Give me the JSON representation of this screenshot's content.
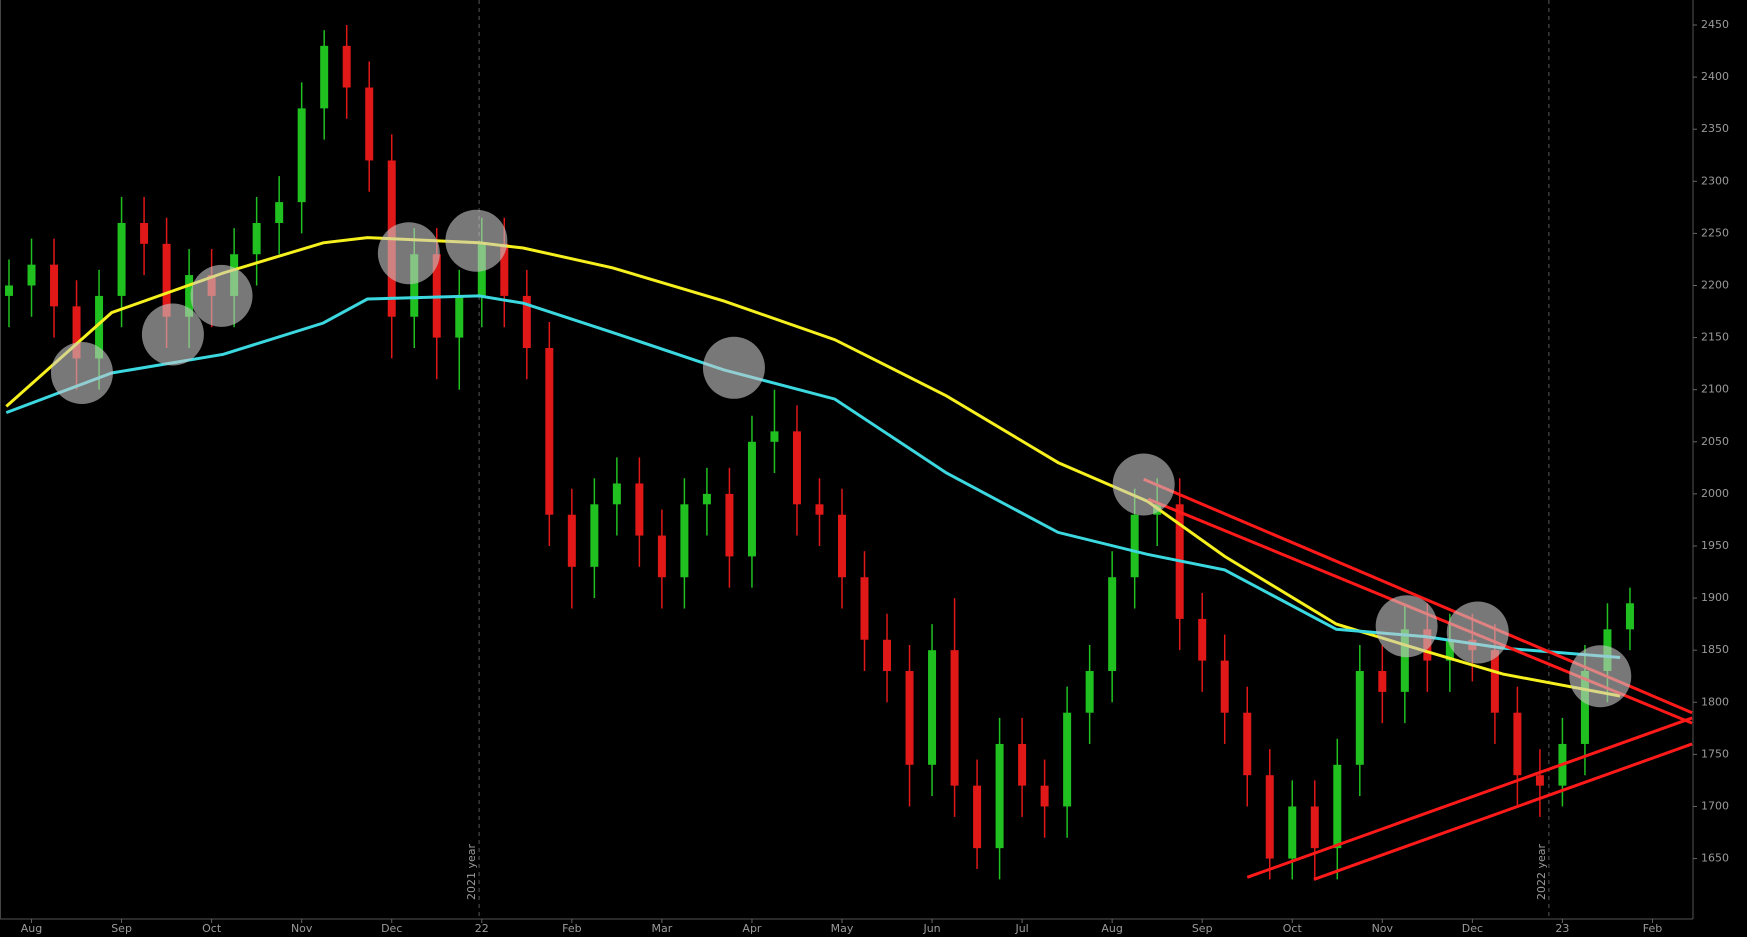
{
  "chart_data": {
    "type": "candlestick",
    "xlim": [
      -0.35,
      18.45
    ],
    "ylim": [
      1592,
      2474
    ],
    "xticks": [
      {
        "value": 0,
        "label": "Aug"
      },
      {
        "value": 1,
        "label": "Sep"
      },
      {
        "value": 2,
        "label": "Oct"
      },
      {
        "value": 3,
        "label": "Nov"
      },
      {
        "value": 4,
        "label": "Dec"
      },
      {
        "value": 5,
        "label": "22"
      },
      {
        "value": 6,
        "label": "Feb"
      },
      {
        "value": 7,
        "label": "Mar"
      },
      {
        "value": 8,
        "label": "Apr"
      },
      {
        "value": 9,
        "label": "May"
      },
      {
        "value": 10,
        "label": "Jun"
      },
      {
        "value": 11,
        "label": "Jul"
      },
      {
        "value": 12,
        "label": "Aug"
      },
      {
        "value": 13,
        "label": "Sep"
      },
      {
        "value": 14,
        "label": "Oct"
      },
      {
        "value": 15,
        "label": "Nov"
      },
      {
        "value": 16,
        "label": "Dec"
      },
      {
        "value": 17,
        "label": "23"
      },
      {
        "value": 18,
        "label": "Feb"
      }
    ],
    "yticks": [
      1650,
      1700,
      1750,
      1800,
      1850,
      1900,
      1950,
      2000,
      2050,
      2100,
      2150,
      2200,
      2250,
      2300,
      2350,
      2400,
      2450
    ],
    "up_color": "#20c020",
    "down_color": "#e01818",
    "candles": {
      "x": [
        -0.25,
        0,
        0.25,
        0.5,
        0.75,
        1,
        1.25,
        1.5,
        1.75,
        2,
        2.25,
        2.5,
        2.75,
        3,
        3.25,
        3.5,
        3.75,
        4,
        4.25,
        4.5,
        4.75,
        5,
        5.25,
        5.5,
        5.75,
        6,
        6.25,
        6.5,
        6.75,
        7,
        7.25,
        7.5,
        7.75,
        8,
        8.25,
        8.5,
        8.75,
        9,
        9.25,
        9.5,
        9.75,
        10,
        10.25,
        10.5,
        10.75,
        11,
        11.25,
        11.5,
        11.75,
        12,
        12.25,
        12.5,
        12.75,
        13,
        13.25,
        13.5,
        13.75,
        14,
        14.25,
        14.5,
        14.75,
        15,
        15.25,
        15.5,
        15.75,
        16,
        16.25,
        16.5,
        16.75,
        17,
        17.25,
        17.5,
        17.75
      ],
      "open": [
        2190,
        2200,
        2220,
        2180,
        2130,
        2190,
        2260,
        2240,
        2170,
        2210,
        2190,
        2230,
        2260,
        2280,
        2370,
        2430,
        2390,
        2320,
        2170,
        2230,
        2150,
        2190,
        2240,
        2190,
        2140,
        1980,
        1930,
        1990,
        2010,
        1960,
        1920,
        1990,
        2000,
        1940,
        2050,
        2060,
        1990,
        1980,
        1920,
        1860,
        1830,
        1740,
        1850,
        1720,
        1660,
        1760,
        1720,
        1700,
        1790,
        1830,
        1920,
        1980,
        1990,
        1880,
        1840,
        1790,
        1730,
        1650,
        1700,
        1660,
        1740,
        1830,
        1810,
        1870,
        1840,
        1860,
        1850,
        1790,
        1730,
        1720,
        1760,
        1830,
        1870
      ],
      "high": [
        2225,
        2245,
        2245,
        2205,
        2215,
        2285,
        2285,
        2265,
        2235,
        2235,
        2255,
        2285,
        2305,
        2395,
        2445,
        2450,
        2415,
        2345,
        2255,
        2255,
        2215,
        2265,
        2265,
        2215,
        2165,
        2005,
        2015,
        2035,
        2035,
        1985,
        2015,
        2025,
        2025,
        2075,
        2100,
        2085,
        2015,
        2005,
        1945,
        1885,
        1855,
        1875,
        1900,
        1745,
        1785,
        1785,
        1745,
        1815,
        1855,
        1945,
        2005,
        2015,
        2015,
        1905,
        1865,
        1815,
        1755,
        1725,
        1725,
        1765,
        1855,
        1855,
        1895,
        1895,
        1885,
        1885,
        1875,
        1815,
        1755,
        1785,
        1855,
        1895,
        1910
      ],
      "low": [
        2160,
        2170,
        2150,
        2100,
        2100,
        2160,
        2210,
        2140,
        2140,
        2160,
        2160,
        2200,
        2230,
        2250,
        2340,
        2360,
        2290,
        2130,
        2140,
        2110,
        2100,
        2160,
        2160,
        2110,
        1950,
        1890,
        1900,
        1960,
        1930,
        1890,
        1890,
        1960,
        1910,
        1910,
        2020,
        1960,
        1950,
        1890,
        1830,
        1800,
        1700,
        1710,
        1690,
        1640,
        1630,
        1690,
        1670,
        1670,
        1760,
        1800,
        1890,
        1950,
        1850,
        1810,
        1760,
        1700,
        1630,
        1630,
        1630,
        1630,
        1710,
        1780,
        1780,
        1810,
        1810,
        1820,
        1760,
        1700,
        1690,
        1700,
        1730,
        1800,
        1850
      ],
      "close": [
        2200,
        2220,
        2180,
        2130,
        2190,
        2260,
        2240,
        2170,
        2210,
        2190,
        2230,
        2260,
        2280,
        2370,
        2430,
        2390,
        2320,
        2170,
        2230,
        2150,
        2190,
        2240,
        2190,
        2140,
        1980,
        1930,
        1990,
        2010,
        1960,
        1920,
        1990,
        2000,
        1940,
        2050,
        2060,
        1990,
        1980,
        1920,
        1860,
        1830,
        1740,
        1850,
        1720,
        1660,
        1760,
        1720,
        1700,
        1790,
        1830,
        1920,
        1980,
        1990,
        1880,
        1840,
        1790,
        1730,
        1650,
        1700,
        1660,
        1740,
        1830,
        1810,
        1870,
        1840,
        1860,
        1850,
        1790,
        1730,
        1720,
        1760,
        1830,
        1870,
        1895
      ]
    },
    "ma_x": [
      -0.28,
      0.89,
      2.13,
      3.24,
      3.73,
      4.97,
      5.46,
      6.45,
      7.69,
      8.92,
      10.16,
      11.4,
      12.39,
      13.25,
      14.49,
      15.48,
      16.34,
      17.64
    ],
    "series": [
      {
        "color": "#f5f01e",
        "values": [
          2084,
          2174,
          2212,
          2241,
          2246,
          2241,
          2236,
          2217,
          2185,
          2148,
          2094,
          2030,
          1993,
          1940,
          1875,
          1849,
          1827,
          1806
        ]
      },
      {
        "color": "#3cd8e0",
        "values": [
          2078,
          2116,
          2134,
          2164,
          2187,
          2190,
          2183,
          2155,
          2119,
          2091,
          2020,
          1963,
          1942,
          1927,
          1870,
          1863,
          1852,
          1843
        ]
      }
    ],
    "trendlines": {
      "color": "#ff1a1a",
      "lines": [
        {
          "x": [
            12.35,
            18.44
          ],
          "y": [
            2014,
            1790
          ]
        },
        {
          "x": [
            12.4,
            18.44
          ],
          "y": [
            1995,
            1780
          ]
        },
        {
          "x": [
            13.5,
            18.44
          ],
          "y": [
            1632,
            1785
          ]
        },
        {
          "x": [
            14.24,
            18.44
          ],
          "y": [
            1630,
            1760
          ]
        }
      ]
    },
    "highlights": {
      "x": [
        0.56,
        1.57,
        2.11,
        4.19,
        4.94,
        7.8,
        12.35,
        15.27,
        16.06,
        17.42
      ],
      "y": [
        2116,
        2153,
        2190,
        2231,
        2243,
        2121,
        2009,
        1873,
        1867,
        1825
      ]
    },
    "annotations": [
      {
        "x": 4.97,
        "text": "2021 year"
      },
      {
        "x": 16.85,
        "text": "2022 year"
      }
    ]
  }
}
